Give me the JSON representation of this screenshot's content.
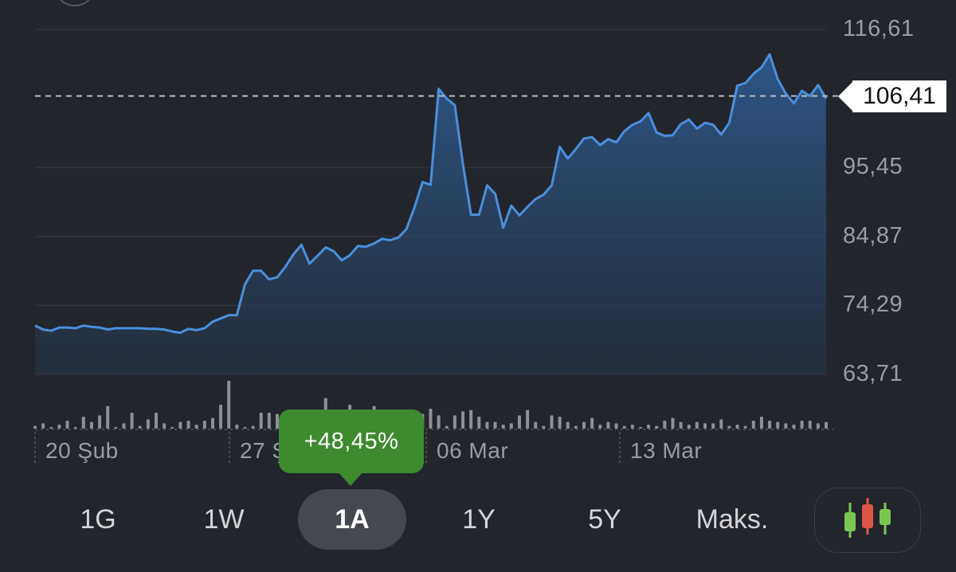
{
  "y_axis": {
    "ticks": [
      "116,61",
      "95,45",
      "84,87",
      "74,29",
      "63,71"
    ]
  },
  "x_axis": {
    "ticks": [
      "20 Şub",
      "27 Ş",
      "06 Mar",
      "13 Mar"
    ]
  },
  "current_price": "106,41",
  "change_badge": "+48,45%",
  "range_buttons": {
    "day": "1G",
    "week": "1W",
    "month": "1A",
    "year": "1Y",
    "five_year": "5Y",
    "max": "Maks."
  },
  "active_range": "1A",
  "colors": {
    "background": "#22252c",
    "line": "#4a8fdc",
    "positive": "#3e8a2f",
    "candle_up": "#7bc653",
    "candle_down": "#e0554a"
  },
  "chart_data": {
    "type": "area",
    "title": "",
    "xlabel": "",
    "ylabel": "",
    "ylim": [
      63.71,
      116.61
    ],
    "y_ticks": [
      116.61,
      95.45,
      84.87,
      74.29,
      63.71
    ],
    "x_tick_labels": [
      "20 Şub",
      "27 Ş",
      "06 Mar",
      "13 Mar"
    ],
    "reference_line": 106.41,
    "series": [
      {
        "values": [
          71.2,
          70.6,
          70.4,
          70.9,
          70.9,
          70.8,
          71.2,
          71.0,
          70.9,
          70.6,
          70.8,
          70.8,
          70.8,
          70.8,
          70.7,
          70.7,
          70.6,
          70.3,
          70.1,
          70.7,
          70.5,
          70.8,
          71.8,
          72.3,
          72.8,
          72.8,
          77.5,
          79.6,
          79.6,
          78.3,
          78.6,
          80.2,
          82.1,
          83.6,
          80.7,
          81.9,
          83.2,
          82.6,
          81.2,
          82.0,
          83.4,
          83.3,
          83.8,
          84.5,
          84.3,
          84.7,
          86.0,
          89.3,
          93.2,
          92.8,
          107.5,
          106.0,
          105.0,
          96.0,
          88.2,
          88.2,
          92.7,
          91.4,
          86.2,
          89.6,
          88.1,
          89.4,
          90.6,
          91.3,
          92.7,
          98.6,
          96.8,
          98.3,
          99.9,
          100.1,
          98.9,
          99.8,
          99.3,
          101.0,
          102.0,
          102.5,
          103.8,
          100.8,
          100.3,
          100.4,
          102.1,
          102.8,
          101.4,
          102.3,
          102.0,
          100.5,
          102.3,
          108.0,
          108.4,
          109.8,
          110.8,
          112.8,
          109.0,
          106.8,
          105.3,
          107.2,
          106.4,
          108.1,
          106.0
        ]
      }
    ],
    "volume": [
      0.02,
      0.04,
      0.01,
      0.03,
      0.06,
      0.01,
      0.09,
      0.05,
      0.1,
      0.17,
      0.01,
      0.04,
      0.12,
      0.02,
      0.07,
      0.12,
      0.04,
      0.01,
      0.05,
      0.06,
      0.03,
      0.06,
      0.08,
      0.18,
      0.36,
      0.03,
      0.01,
      0.02,
      0.12,
      0.12,
      0.11,
      0.08,
      0.05,
      0.03,
      0.04,
      0.11,
      0.23,
      0.05,
      0.02,
      0.18,
      0.08,
      0.06,
      0.17,
      0.12,
      0.04,
      0.1,
      0.14,
      0.07,
      0.11,
      0.15,
      0.1,
      0.02,
      0.1,
      0.13,
      0.14,
      0.09,
      0.05,
      0.05,
      0.03,
      0.04,
      0.1,
      0.14,
      0.05,
      0.02,
      0.1,
      0.09,
      0.05,
      0.02,
      0.05,
      0.08,
      0.03,
      0.05,
      0.04,
      0.02,
      0.03,
      0.01,
      0.03,
      0.02,
      0.06,
      0.08,
      0.05,
      0.03,
      0.05,
      0.04,
      0.04,
      0.07,
      0.02,
      0.03,
      0.02,
      0.06,
      0.09,
      0.06,
      0.05,
      0.04,
      0.03,
      0.06,
      0.06,
      0.04,
      0.05
    ]
  }
}
